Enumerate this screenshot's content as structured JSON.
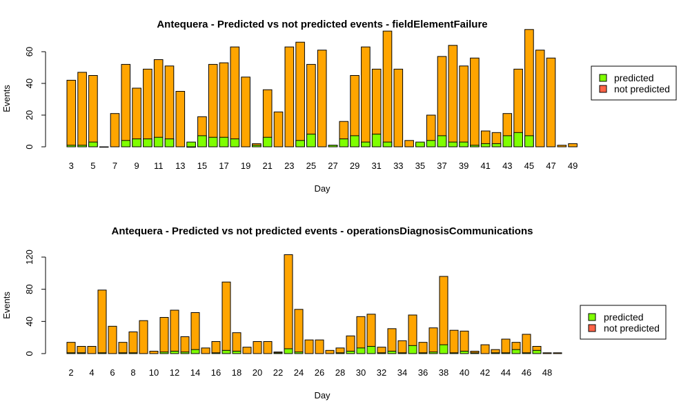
{
  "colors": {
    "predicted": "#7fff00",
    "not_predicted": "#ff6347",
    "bar_fill": "#ffa500",
    "stroke": "#000000"
  },
  "chart_data": [
    {
      "type": "bar",
      "stacked": true,
      "title": "Antequera - Predicted vs not predicted events - fieldElementFailure",
      "xlabel": "Day",
      "ylabel": "Events",
      "ylim": [
        0,
        70
      ],
      "yticks": [
        0,
        20,
        40,
        60
      ],
      "categories": [
        "3",
        "4",
        "5",
        "6",
        "7",
        "8",
        "9",
        "10",
        "11",
        "12",
        "13",
        "14",
        "15",
        "16",
        "17",
        "18",
        "19",
        "20",
        "21",
        "22",
        "23",
        "24",
        "25",
        "26",
        "27",
        "28",
        "29",
        "30",
        "31",
        "32",
        "33",
        "34",
        "35",
        "36",
        "37",
        "38",
        "39",
        "40",
        "41",
        "42",
        "43",
        "44",
        "45",
        "46",
        "47",
        "48",
        "49"
      ],
      "xtick_labels": [
        "3",
        "5",
        "7",
        "9",
        "11",
        "13",
        "15",
        "17",
        "19",
        "21",
        "23",
        "25",
        "27",
        "29",
        "31",
        "33",
        "35",
        "37",
        "39",
        "41",
        "43",
        "45",
        "47",
        "49"
      ],
      "legend": {
        "position": "right",
        "entries": [
          "predicted",
          "not predicted"
        ]
      },
      "series": [
        {
          "name": "predicted",
          "values": [
            1,
            1,
            3,
            0,
            0,
            4,
            5,
            5,
            6,
            5,
            0,
            3,
            7,
            6,
            6,
            5,
            0,
            1,
            6,
            0,
            0,
            4,
            8,
            0,
            1,
            5,
            7,
            3,
            8,
            3,
            0,
            0,
            3,
            4,
            7,
            3,
            3,
            1,
            2,
            2,
            7,
            9,
            7,
            0,
            0,
            0,
            0
          ]
        },
        {
          "name": "not predicted",
          "values": [
            0,
            0,
            0,
            0,
            0,
            0,
            0,
            0,
            0,
            0,
            0,
            0,
            0,
            0,
            0,
            0,
            0,
            0,
            0,
            0,
            0,
            0,
            0,
            0,
            0,
            0,
            0,
            0,
            0,
            0,
            0,
            0,
            0,
            0,
            0,
            0,
            0,
            0,
            0,
            0,
            0,
            0,
            0,
            0,
            0,
            0,
            0
          ]
        },
        {
          "name": "total",
          "values": [
            42,
            47,
            45,
            0,
            21,
            52,
            37,
            49,
            55,
            51,
            35,
            0,
            19,
            52,
            53,
            63,
            44,
            2,
            36,
            22,
            63,
            66,
            52,
            61,
            1,
            16,
            45,
            63,
            49,
            73,
            49,
            4,
            2,
            20,
            57,
            64,
            51,
            56,
            10,
            9,
            21,
            49,
            74,
            61,
            56,
            1,
            2
          ]
        }
      ]
    },
    {
      "type": "bar",
      "stacked": true,
      "title": "Antequera - Predicted vs not predicted events - operationsDiagnosisCommunications",
      "xlabel": "Day",
      "ylabel": "Events",
      "ylim": [
        0,
        120
      ],
      "yticks": [
        0,
        40,
        80,
        120
      ],
      "categories": [
        "2",
        "3",
        "4",
        "5",
        "6",
        "7",
        "8",
        "9",
        "10",
        "11",
        "12",
        "13",
        "14",
        "15",
        "16",
        "17",
        "18",
        "19",
        "20",
        "21",
        "22",
        "23",
        "24",
        "25",
        "26",
        "27",
        "28",
        "29",
        "30",
        "31",
        "32",
        "33",
        "34",
        "35",
        "36",
        "37",
        "38",
        "39",
        "40",
        "41",
        "42",
        "43",
        "44",
        "45",
        "46",
        "47",
        "48",
        "49"
      ],
      "xtick_labels": [
        "2",
        "4",
        "6",
        "8",
        "10",
        "12",
        "14",
        "16",
        "18",
        "20",
        "22",
        "24",
        "26",
        "28",
        "30",
        "32",
        "34",
        "36",
        "38",
        "40",
        "42",
        "44",
        "46",
        "48"
      ],
      "legend": {
        "position": "right",
        "entries": [
          "predicted",
          "not predicted"
        ]
      },
      "series": [
        {
          "name": "predicted",
          "values": [
            1,
            1,
            0,
            1,
            0,
            1,
            1,
            0,
            0,
            2,
            3,
            2,
            5,
            0,
            1,
            4,
            3,
            0,
            0,
            0,
            1,
            6,
            2,
            0,
            0,
            0,
            1,
            3,
            7,
            9,
            1,
            3,
            1,
            10,
            1,
            2,
            11,
            1,
            3,
            1,
            0,
            1,
            1,
            5,
            1,
            4,
            0,
            0
          ]
        },
        {
          "name": "not predicted",
          "values": [
            0,
            0,
            0,
            0,
            0,
            0,
            0,
            0,
            0,
            0,
            0,
            0,
            0,
            0,
            0,
            0,
            0,
            0,
            0,
            0,
            0,
            0,
            0,
            0,
            0,
            0,
            0,
            0,
            0,
            0,
            0,
            0,
            0,
            0,
            0,
            0,
            0,
            0,
            0,
            0,
            0,
            0,
            0,
            0,
            0,
            0,
            0,
            0
          ]
        },
        {
          "name": "total",
          "values": [
            14,
            9,
            9,
            79,
            34,
            14,
            27,
            41,
            3,
            45,
            54,
            21,
            51,
            7,
            15,
            89,
            26,
            8,
            15,
            15,
            2,
            123,
            55,
            17,
            17,
            4,
            7,
            22,
            46,
            49,
            8,
            31,
            16,
            48,
            14,
            32,
            96,
            29,
            28,
            3,
            11,
            5,
            18,
            14,
            24,
            9,
            1,
            1
          ]
        }
      ]
    }
  ]
}
